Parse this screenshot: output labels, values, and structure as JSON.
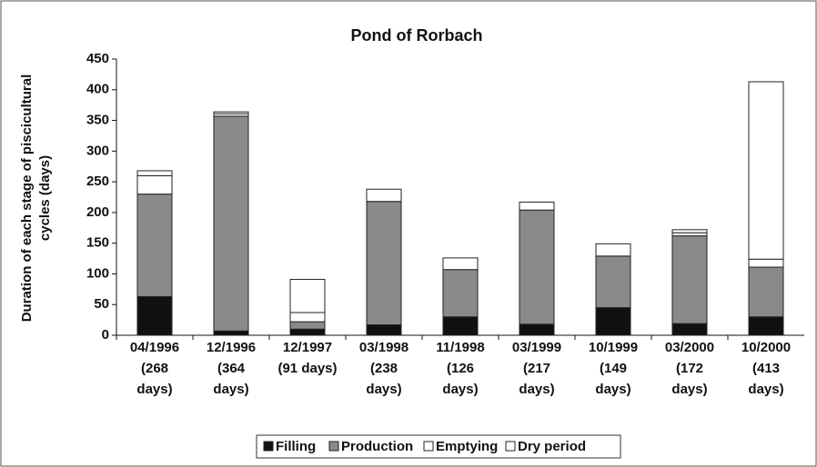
{
  "chart_data": {
    "type": "stacked_bar",
    "title": "Pond of Rorbach",
    "y_label": [
      "Duration of each stage of piscicultural",
      "cycles (days)"
    ],
    "categories": [
      [
        "04/1996",
        "(268",
        "days)"
      ],
      [
        "12/1996",
        "(364",
        "days)"
      ],
      [
        "12/1997",
        "(91 days)"
      ],
      [
        "03/1998",
        "(238",
        "days)"
      ],
      [
        "11/1998",
        "(126",
        "days)"
      ],
      [
        "03/1999",
        "(217",
        "days)"
      ],
      [
        "10/1999",
        "(149",
        "days)"
      ],
      [
        "03/2000",
        "(172",
        "days)"
      ],
      [
        "10/2000",
        "(413",
        "days)"
      ]
    ],
    "series": [
      {
        "name": "Filling",
        "color": "#111111",
        "values": [
          63,
          7,
          10,
          17,
          30,
          18,
          45,
          19,
          30
        ]
      },
      {
        "name": "Production",
        "color": "#8a8a8a",
        "values": [
          167,
          350,
          12,
          201,
          77,
          186,
          84,
          143,
          81
        ]
      },
      {
        "name": "Emptying",
        "color": "#ffffff",
        "values": [
          30,
          4,
          15,
          20,
          19,
          13,
          20,
          5,
          13
        ]
      },
      {
        "name": "Dry period",
        "color": "#ffffff",
        "values": [
          8,
          3,
          54,
          0,
          0,
          0,
          0,
          5,
          289
        ]
      }
    ],
    "ylim": [
      0,
      450
    ],
    "yticks": [
      0,
      50,
      100,
      150,
      200,
      250,
      300,
      350,
      400,
      450
    ],
    "grid": false,
    "legend": "bottom"
  }
}
